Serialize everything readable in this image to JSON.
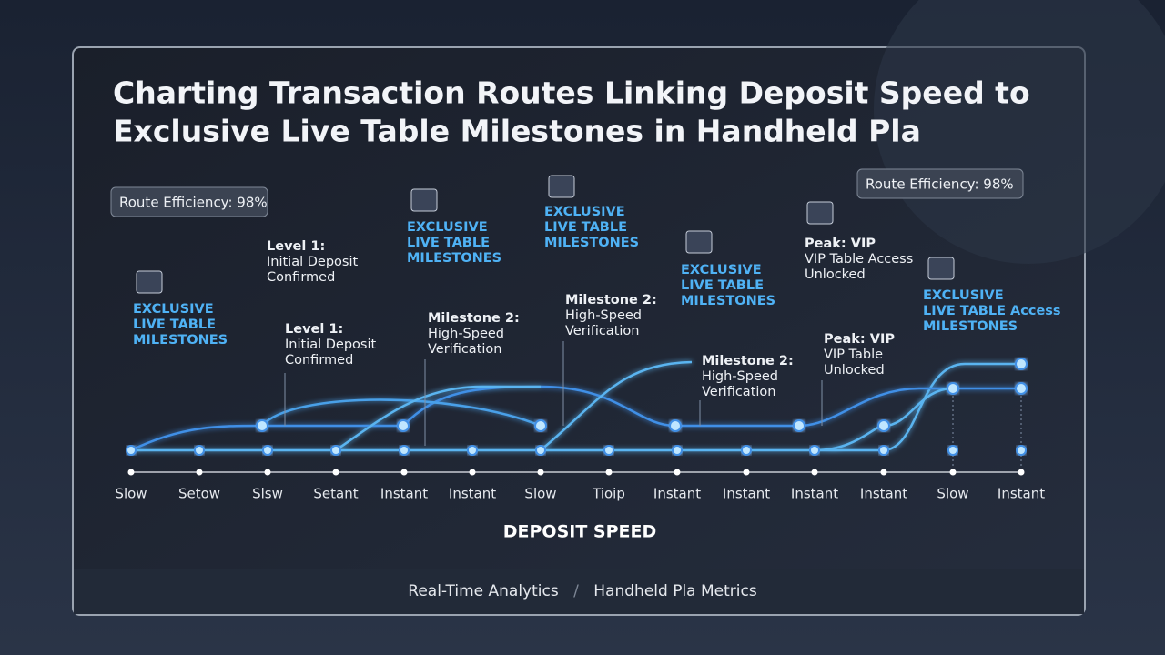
{
  "header": {
    "title_lines": [
      "Charting Transaction Routes Linking Deposit Speed to",
      "Exclusive Live Table Milestones in Handheld Pla"
    ]
  },
  "callouts": [
    "Route Efficiency: 98%",
    "Route Efficiency: 98%"
  ],
  "annotations": [
    {
      "lines": [
        "EXCLUSIVE",
        "LIVE TABLE",
        "MILESTONES"
      ],
      "style": "milestone"
    },
    {
      "lines": [
        "Level 1:",
        "Initial Deposit",
        "Confirmed"
      ],
      "style": "note"
    },
    {
      "lines": [
        "Level 1:",
        "Initial Deposit",
        "Confirmed"
      ],
      "style": "note"
    },
    {
      "lines": [
        "EXCLUSIVE",
        "LIVE TABLE",
        "MILESTONES"
      ],
      "style": "milestone"
    },
    {
      "lines": [
        "Milestone 2:",
        "High-Speed",
        "Verification"
      ],
      "style": "note"
    },
    {
      "lines": [
        "EXCLUSIVE",
        "LIVE TABLE",
        "MILESTONES"
      ],
      "style": "milestone"
    },
    {
      "lines": [
        "Milestone 2:",
        "High-Speed",
        "Verification"
      ],
      "style": "note"
    },
    {
      "lines": [
        "EXCLUSIVE",
        "LIVE TABLE",
        "MILESTONES"
      ],
      "style": "milestone"
    },
    {
      "lines": [
        "Milestone 2:",
        "High-Speed",
        "Verification"
      ],
      "style": "note"
    },
    {
      "lines": [
        "Peak: VIP",
        "VIP Table Access",
        "Unlocked"
      ],
      "style": "note"
    },
    {
      "lines": [
        "Peak: VIP",
        "VIP Table",
        "Unlocked"
      ],
      "style": "note"
    },
    {
      "lines": [
        "EXCLUSIVE",
        "LIVE TABLE Access",
        "MILESTONES"
      ],
      "style": "milestone"
    }
  ],
  "x_axis": {
    "labels": [
      "Slow",
      "Setow",
      "Slsw",
      "Setant",
      "Instant",
      "Instant",
      "Slow",
      "Tioip",
      "Instant",
      "Instant",
      "Instant",
      "Instant",
      "Slow",
      "Instant"
    ],
    "title": "DEPOSIT SPEED"
  },
  "footer": {
    "left": "Real-Time Analytics",
    "separator": "/",
    "right": "Handheld Pla Metrics"
  }
}
